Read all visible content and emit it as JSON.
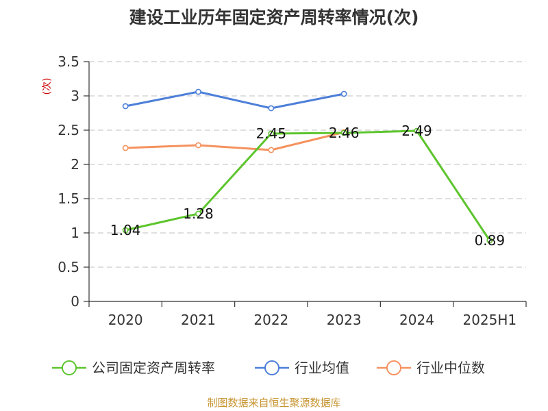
{
  "source_note": "制图数据来自恒生聚源数据库",
  "colors": {
    "company": "#5cc52d",
    "industry_avg": "#4d7fd9",
    "industry_median": "#f5925f",
    "grid": "#cccccc",
    "axis": "#333333",
    "ylabel": "#cc0000",
    "source_note": "#c79532"
  },
  "chart_data": {
    "type": "line",
    "title": "建设工业历年固定资产周转率情况(次)",
    "ylabel": "(次)",
    "xlabel": "",
    "categories": [
      "2020",
      "2021",
      "2022",
      "2023",
      "2024",
      "2025H1"
    ],
    "ylim": [
      0,
      3.5
    ],
    "yticks": [
      0,
      0.5,
      1,
      1.5,
      2,
      2.5,
      3,
      3.5
    ],
    "ytick_labels": [
      "0",
      "0.5",
      "1",
      "1.5",
      "2",
      "2.5",
      "3",
      "3.5"
    ],
    "grid": true,
    "legend_position": "bottom",
    "series": [
      {
        "name": "公司固定资产周转率",
        "values": [
          1.04,
          1.28,
          2.45,
          2.46,
          2.49,
          0.89
        ],
        "labels": [
          "1.04",
          "1.28",
          "2.45",
          "2.46",
          "2.49",
          "0.89"
        ],
        "show_labels": true
      },
      {
        "name": "行业均值",
        "values": [
          2.85,
          3.06,
          2.82,
          3.03,
          null,
          null
        ]
      },
      {
        "name": "行业中位数",
        "values": [
          2.24,
          2.28,
          2.21,
          2.47,
          null,
          null
        ]
      }
    ]
  }
}
